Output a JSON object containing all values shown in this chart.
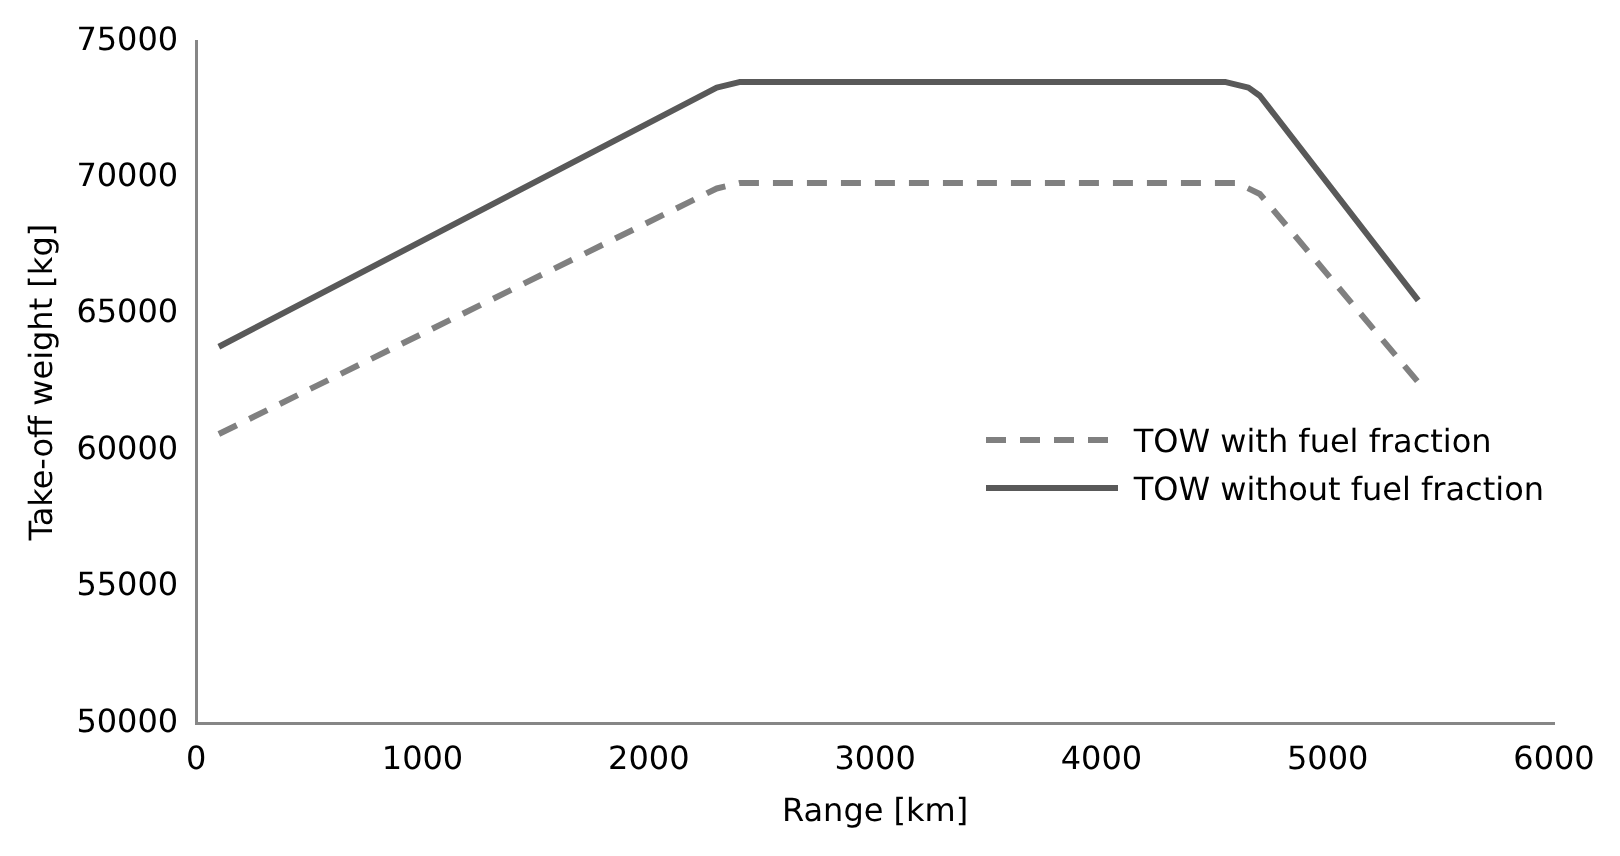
{
  "chart_data": {
    "type": "line",
    "xlabel": "Range [km]",
    "ylabel": "Take-off weight [kg]",
    "xlim": [
      0,
      6000
    ],
    "xticks": [
      0,
      1000,
      2000,
      3000,
      4000,
      5000,
      6000
    ],
    "ylim": [
      50000,
      75000
    ],
    "yticks": [
      50000,
      55000,
      60000,
      65000,
      70000,
      75000
    ],
    "grid": false,
    "legend": "right",
    "marker": "none",
    "series": [
      {
        "name": "TOW with fuel fraction",
        "color": "#808080",
        "line_style": "dashed",
        "x": [
          100,
          2300,
          2400,
          4600,
          4700,
          5400
        ],
        "values": [
          60600,
          69600,
          69800,
          69800,
          69400,
          62500
        ]
      },
      {
        "name": "TOW without fuel fraction",
        "color": "#595959",
        "line_style": "solid",
        "x": [
          100,
          2300,
          2400,
          4550,
          4650,
          4700,
          5400
        ],
        "values": [
          63800,
          73300,
          73500,
          73500,
          73300,
          73000,
          65500
        ]
      }
    ]
  }
}
